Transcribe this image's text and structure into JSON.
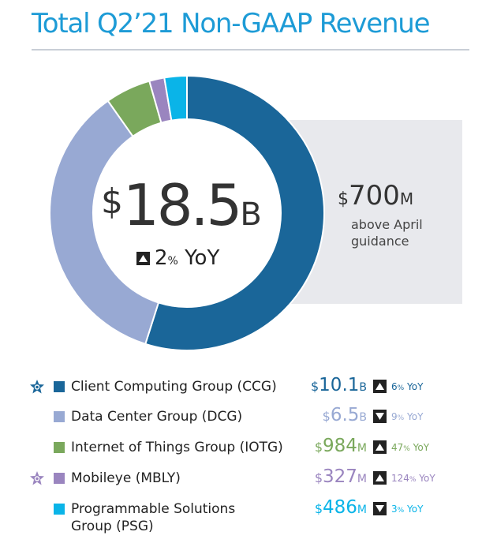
{
  "title": "Total Q2’21 Non-GAAP Revenue",
  "total": {
    "currency": "$",
    "value": "18.5",
    "unit": "B",
    "yoy_pct": "2",
    "yoy_pct_sign": "%",
    "yoy_label": "YoY",
    "yoy_direction": "up"
  },
  "guidance": {
    "currency": "$",
    "value": "700",
    "unit": "M",
    "text": "above April guidance"
  },
  "colors": {
    "title": "#1d9bd6",
    "CCG": "#1a6699",
    "DCG": "#98a9d3",
    "IOTG": "#7aa85c",
    "MBLY": "#9a85bf",
    "PSG": "#0ab4e8"
  },
  "legend": [
    {
      "label": "Client Computing Group (CCG)",
      "currency": "$",
      "value": "10.1",
      "unit": "B",
      "yoy_pct": "6",
      "yoy_label": "YoY",
      "direction": "up",
      "star": true,
      "color": "#1a6699",
      "text_color": "#1a6699"
    },
    {
      "label": "Data Center Group (DCG)",
      "currency": "$",
      "value": "6.5",
      "unit": "B",
      "yoy_pct": "9",
      "yoy_label": "YoY",
      "direction": "down",
      "star": false,
      "color": "#98a9d3",
      "text_color": "#98a9d3"
    },
    {
      "label": "Internet of Things Group (IOTG)",
      "currency": "$",
      "value": "984",
      "unit": "M",
      "yoy_pct": "47",
      "yoy_label": "YoY",
      "direction": "up",
      "star": false,
      "color": "#7aa85c",
      "text_color": "#7aa85c"
    },
    {
      "label": "Mobileye (MBLY)",
      "currency": "$",
      "value": "327",
      "unit": "M",
      "yoy_pct": "124",
      "yoy_label": "YoY",
      "direction": "up",
      "star": true,
      "color": "#9a85bf",
      "text_color": "#9a85bf"
    },
    {
      "label_line1": "Programmable Solutions",
      "label_line2": "Group (PSG)",
      "currency": "$",
      "value": "486",
      "unit": "M",
      "yoy_pct": "3",
      "yoy_label": "YoY",
      "direction": "down",
      "star": false,
      "color": "#0ab4e8",
      "text_color": "#0ab4e8"
    }
  ],
  "chart_data": {
    "type": "pie",
    "categories": [
      "CCG",
      "DCG",
      "IOTG",
      "MBLY",
      "PSG"
    ],
    "values": [
      10.1,
      6.5,
      0.984,
      0.327,
      0.486
    ],
    "units": [
      "B",
      "B",
      "B",
      "B",
      "B"
    ],
    "title": "Total Q2’21 Non-GAAP Revenue",
    "donut": true
  }
}
